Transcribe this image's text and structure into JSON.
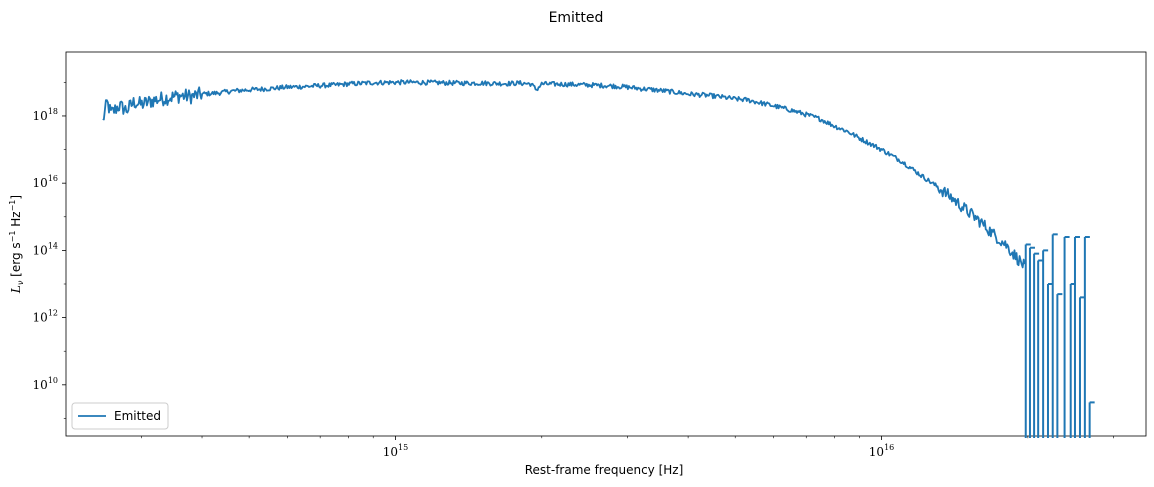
{
  "chart_data": {
    "type": "line",
    "title": "Emitted",
    "xlabel": "Rest-frame frequency [Hz]",
    "ylabel_main": "L",
    "ylabel_sub": "ν",
    "ylabel_units": " [erg s",
    "ylabel_exp1": "−1",
    "ylabel_hz": " Hz",
    "ylabel_exp2": "−1",
    "ylabel_close": "]",
    "xscale": "log",
    "yscale": "log",
    "xlim": [
      210000000000000.0,
      3.5e+16
    ],
    "ylim": [
      300000000.0,
      8e+19
    ],
    "x_ticks": [
      {
        "base": "10",
        "exp": "15",
        "value": 1000000000000000.0
      },
      {
        "base": "10",
        "exp": "16",
        "value": 1e+16
      }
    ],
    "y_ticks": [
      {
        "base": "10",
        "exp": "10",
        "value": 10000000000.0
      },
      {
        "base": "10",
        "exp": "12",
        "value": 1000000000000.0
      },
      {
        "base": "10",
        "exp": "14",
        "value": 100000000000000.0
      },
      {
        "base": "10",
        "exp": "16",
        "value": 1e+16
      },
      {
        "base": "10",
        "exp": "18",
        "value": 1e+18
      }
    ],
    "legend": {
      "position": "lower-left",
      "entries": [
        "Emitted"
      ]
    },
    "grid": false,
    "line_color": "#1f77b4",
    "series": [
      {
        "name": "Emitted",
        "x": [
          250000000000000.0,
          255000000000000.0,
          260000000000000.0,
          270000000000000.0,
          280000000000000.0,
          290000000000000.0,
          300000000000000.0,
          320000000000000.0,
          340000000000000.0,
          360000000000000.0,
          380000000000000.0,
          400000000000000.0,
          430000000000000.0,
          460000000000000.0,
          500000000000000.0,
          550000000000000.0,
          600000000000000.0,
          650000000000000.0,
          700000000000000.0,
          750000000000000.0,
          800000000000000.0,
          850000000000000.0,
          900000000000000.0,
          1000000000000000.0,
          1100000000000000.0,
          1200000000000000.0,
          1300000000000000.0,
          1400000000000000.0,
          1500000000000000.0,
          1600000000000000.0,
          1700000000000000.0,
          1800000000000000.0,
          1900000000000000.0,
          1950000000000000.0,
          2000000000000000.0,
          2200000000000000.0,
          2400000000000000.0,
          2600000000000000.0,
          2800000000000000.0,
          3000000000000000.0,
          3200000000000000.0,
          3400000000000000.0,
          3600000000000000.0,
          3800000000000000.0,
          4000000000000000.0,
          4300000000000000.0,
          4600000000000000.0,
          5000000000000000.0,
          5300000000000000.0,
          5600000000000000.0,
          6000000000000000.0,
          6500000000000000.0,
          7000000000000000.0,
          7500000000000000.0,
          8000000000000000.0,
          8500000000000000.0,
          9000000000000000.0,
          1e+16,
          1.1e+16,
          1.2e+16,
          1.3e+16,
          1.4e+16,
          1.5e+16,
          1.6e+16,
          1.7e+16,
          1.8e+16,
          1.9e+16,
          1.98e+16
        ],
        "y": [
          7e+17,
          2.5e+18,
          1.2e+18,
          2e+18,
          1.5e+18,
          2.6e+18,
          2.2e+18,
          3e+18,
          3.5e+18,
          4e+18,
          3.8e+18,
          4.5e+18,
          4.8e+18,
          5.5e+18,
          6e+18,
          6.5e+18,
          7.2e+18,
          7.5e+18,
          8e+18,
          8.3e+18,
          9e+18,
          9.3e+18,
          9.8e+18,
          1e+19,
          1e+19,
          9.8e+18,
          9.6e+18,
          9.5e+18,
          9.5e+18,
          9.3e+18,
          9.2e+18,
          9.5e+18,
          9e+18,
          6e+18,
          9e+18,
          8.8e+18,
          8.5e+18,
          8.2e+18,
          7.8e+18,
          7.2e+18,
          6.5e+18,
          6e+18,
          5.5e+18,
          5e+18,
          4.5e+18,
          4.2e+18,
          3.8e+18,
          3.2e+18,
          3e+18,
          2.5e+18,
          2e+18,
          1.5e+18,
          1.1e+18,
          8e+17,
          5e+17,
          3.5e+17,
          2.2e+17,
          1e+17,
          4.5e+16,
          1.8e+16,
          8000000000000000.0,
          3500000000000000.0,
          1500000000000000.0,
          700000000000000.0,
          300000000000000.0,
          150000000000000.0,
          60000000000000.0,
          30000000000000.0
        ],
        "spikes": [
          {
            "x": 1.98e+16,
            "peak": 150000000000000.0
          },
          {
            "x": 2.02e+16,
            "peak": 120000000000000.0
          },
          {
            "x": 2.06e+16,
            "peak": 80000000000000.0
          },
          {
            "x": 2.1e+16,
            "peak": 50000000000000.0
          },
          {
            "x": 2.15e+16,
            "peak": 100000000000000.0
          },
          {
            "x": 2.2e+16,
            "peak": 10000000000000.0
          },
          {
            "x": 2.25e+16,
            "peak": 300000000000000.0
          },
          {
            "x": 2.3e+16,
            "peak": 5000000000000.0
          },
          {
            "x": 2.38e+16,
            "peak": 250000000000000.0
          },
          {
            "x": 2.45e+16,
            "peak": 10000000000000.0
          },
          {
            "x": 2.5e+16,
            "peak": 250000000000000.0
          },
          {
            "x": 2.56e+16,
            "peak": 4000000000000.0
          },
          {
            "x": 2.62e+16,
            "peak": 250000000000000.0
          },
          {
            "x": 2.68e+16,
            "peak": 3000000000.0
          }
        ]
      }
    ]
  }
}
